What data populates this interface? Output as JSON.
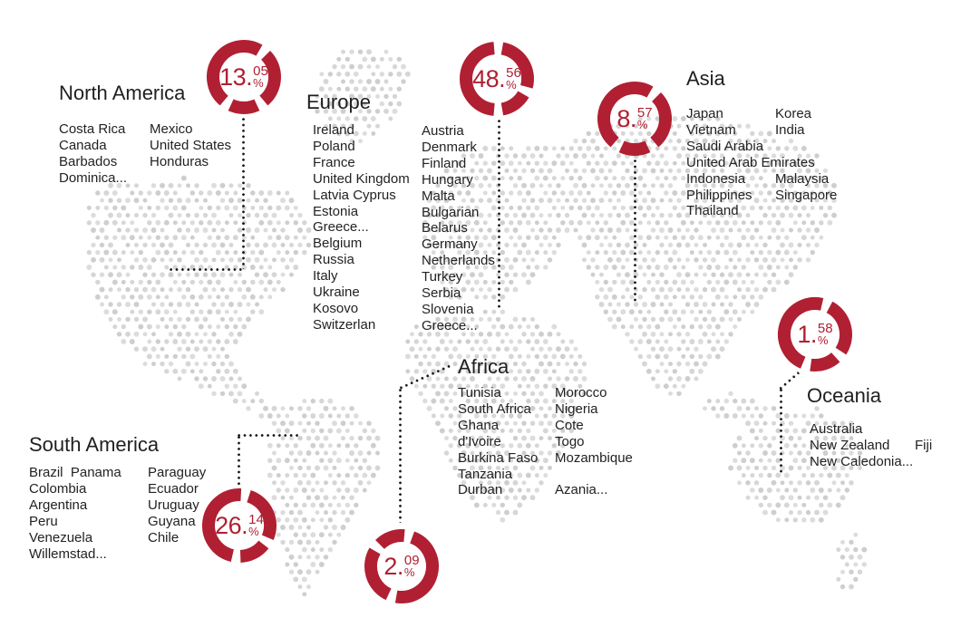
{
  "colors": {
    "accent": "#b02032",
    "map_dot": "#d7d7d7",
    "text": "#1f1f1f",
    "connector": "#161616"
  },
  "regions": [
    {
      "name": "North America",
      "value": 13.05,
      "percent": {
        "big": "13.",
        "sup": "05",
        "sign": "%"
      },
      "columns": [
        [
          "Costa Rica",
          "Canada",
          "Barbados",
          "Dominica..."
        ],
        [
          "Mexico",
          "United States",
          "Honduras"
        ]
      ]
    },
    {
      "name": "Europe",
      "value": 48.56,
      "percent": {
        "big": "48.",
        "sup": "56",
        "sign": "%"
      },
      "columns": [
        [
          "Ireland",
          "Poland",
          "France",
          "United Kingdom",
          "Latvia Cyprus",
          "Estonia",
          "Greece...",
          "Belgium",
          "Russia",
          "Italy",
          "Ukraine",
          "Kosovo",
          "Switzerlan"
        ],
        [
          "Austria",
          "Denmark",
          "Finland",
          "Hungary",
          "Malta",
          "Bulgarian",
          "Belarus",
          "Germany",
          "Netherlands",
          "Turkey",
          "Serbia",
          "Slovenia",
          "Greece..."
        ]
      ]
    },
    {
      "name": "Asia",
      "value": 8.57,
      "percent": {
        "big": "8.",
        "sup": "57",
        "sign": "%"
      },
      "columns": [
        [
          "Japan",
          "Vietnam",
          "Saudi Arabia",
          "United Arab Emirates",
          "Indonesia",
          "Philippines",
          "Thailand"
        ],
        [
          "Korea",
          "India",
          "",
          "",
          "Malaysia",
          "Singapore"
        ]
      ]
    },
    {
      "name": "Oceania",
      "value": 1.58,
      "percent": {
        "big": "1.",
        "sup": "58",
        "sign": "%"
      },
      "columns": [
        [
          "Australia",
          "New Zealand",
          "New Caledonia..."
        ],
        [
          "",
          "Fiji",
          ""
        ]
      ]
    },
    {
      "name": "South America",
      "value": 26.14,
      "percent": {
        "big": "26.",
        "sup": "14",
        "sign": "%"
      },
      "columns": [
        [
          "Brazil  Panama",
          "Colombia",
          "Argentina",
          "Peru",
          "Venezuela",
          "Willemstad..."
        ],
        [
          "Paraguay",
          "Ecuador",
          "Uruguay",
          "Guyana",
          "Chile"
        ]
      ]
    },
    {
      "name": "Africa",
      "value": 2.09,
      "percent": {
        "big": "2.",
        "sup": "09",
        "sign": "%"
      },
      "columns": [
        [
          "Tunisia",
          "South Africa",
          "Ghana",
          "d'Ivoire",
          "Burkina Faso",
          "Tanzania",
          "Durban"
        ],
        [
          "Morocco",
          "Nigeria",
          "Cote",
          "Togo",
          "Mozambique",
          "",
          "Azania..."
        ]
      ]
    }
  ],
  "chart_data": {
    "type": "pie",
    "title": "",
    "categories": [
      "North America",
      "Europe",
      "Asia",
      "Oceania",
      "South America",
      "Africa"
    ],
    "values": [
      13.05,
      48.56,
      8.57,
      1.58,
      26.14,
      2.09
    ],
    "unit": "%"
  }
}
